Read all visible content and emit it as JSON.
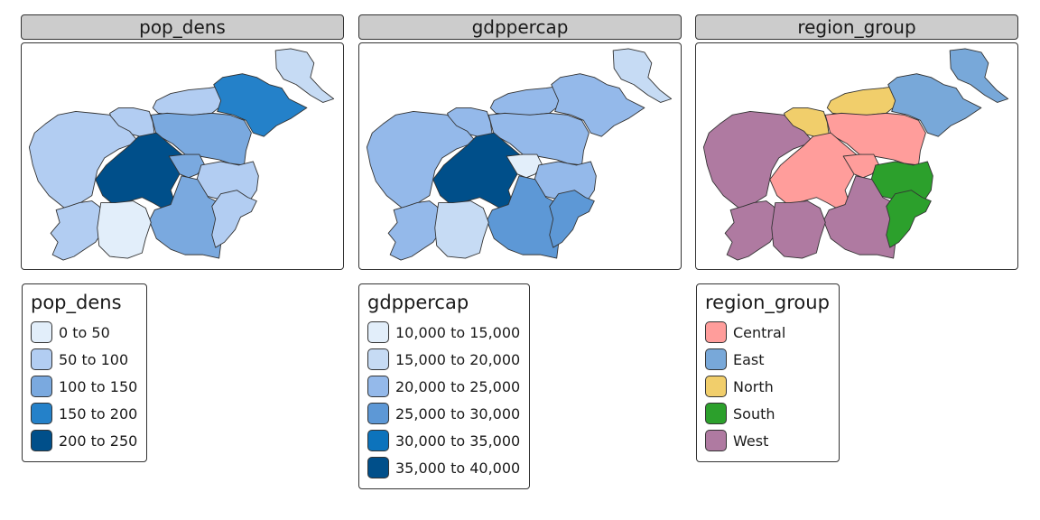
{
  "panels": [
    {
      "title": "pop_dens",
      "region_fills": [
        "#c6dbf4",
        "#b2cdf2",
        "#2481c9",
        "#7aa9df",
        "#b2cdf2",
        "#b2cdf2",
        "#b2cdf2",
        "#004f8a",
        "#7aa9df",
        "#b2cdf2",
        "#7aa9df",
        "#e2eefa",
        "#b2cdf2"
      ],
      "legend": {
        "title": "pop_dens",
        "items": [
          {
            "label": "0 to 50",
            "color": "#e2eefa"
          },
          {
            "label": "50 to 100",
            "color": "#b2cdf2"
          },
          {
            "label": "100 to 150",
            "color": "#7aa9df"
          },
          {
            "label": "150 to 200",
            "color": "#2481c9"
          },
          {
            "label": "200 to 250",
            "color": "#004f8a"
          }
        ]
      }
    },
    {
      "title": "gdppercap",
      "region_fills": [
        "#c6dbf4",
        "#94b9ea",
        "#94b9ea",
        "#94b9ea",
        "#94b9ea",
        "#94b9ea",
        "#94b9ea",
        "#004f8a",
        "#e2eefa",
        "#94b9ea",
        "#5d98d6",
        "#c6dbf4",
        "#5d98d6"
      ],
      "legend": {
        "title": "gdppercap",
        "items": [
          {
            "label": "10,000 to 15,000",
            "color": "#e2eefa"
          },
          {
            "label": "15,000 to 20,000",
            "color": "#c6dbf4"
          },
          {
            "label": "20,000 to 25,000",
            "color": "#94b9ea"
          },
          {
            "label": "25,000 to 30,000",
            "color": "#5d98d6"
          },
          {
            "label": "30,000 to 35,000",
            "color": "#0c73bc"
          },
          {
            "label": "35,000 to 40,000",
            "color": "#004f8a"
          }
        ]
      }
    },
    {
      "title": "region_group",
      "region_fills": [
        "#78a8d9",
        "#f1ce6b",
        "#78a8d9",
        "#ff9d9b",
        "#f1ce6b",
        "#af7aa1",
        "#af7aa1",
        "#ff9d9b",
        "#ff9d9b",
        "#2ca02c",
        "#af7aa1",
        "#af7aa1",
        "#2ca02c"
      ],
      "legend": {
        "title": "region_group",
        "items": [
          {
            "label": "Central",
            "color": "#ff9d9b"
          },
          {
            "label": "East",
            "color": "#78a8d9"
          },
          {
            "label": "North",
            "color": "#f1ce6b"
          },
          {
            "label": "South",
            "color": "#2ca02c"
          },
          {
            "label": "West",
            "color": "#af7aa1"
          }
        ]
      }
    }
  ]
}
